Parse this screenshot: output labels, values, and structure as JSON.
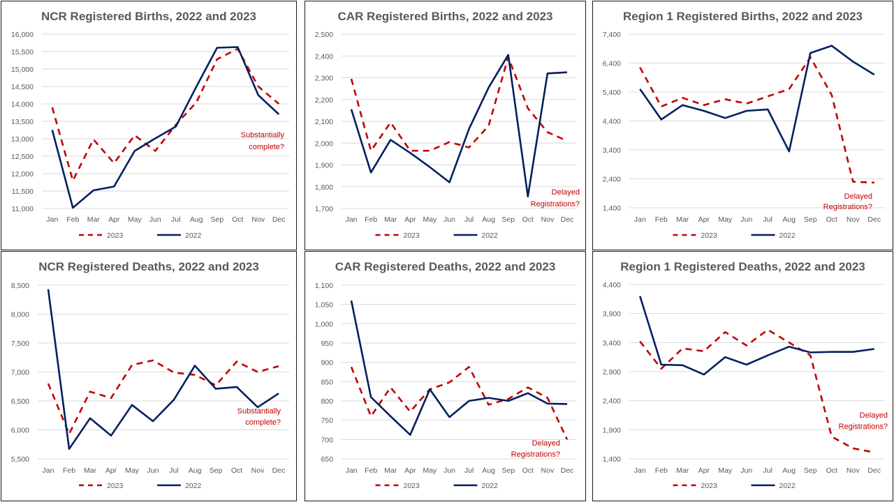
{
  "colors": {
    "s2023": "#c00000",
    "s2022": "#002060"
  },
  "chart_data": [
    {
      "type": "line",
      "title": "NCR Registered Births, 2022 and 2023",
      "categories": [
        "Jan",
        "Feb",
        "Mar",
        "Apr",
        "May",
        "Jun",
        "Jul",
        "Aug",
        "Sep",
        "Oct",
        "Nov",
        "Dec"
      ],
      "ylim": [
        11000,
        16000
      ],
      "yticks": [
        11000,
        11500,
        12000,
        12500,
        13000,
        13500,
        14000,
        14500,
        15000,
        15500,
        16000
      ],
      "ytick_labels": [
        "11,000",
        "11,500",
        "12,000",
        "12,500",
        "13,000",
        "13,500",
        "14,000",
        "14,500",
        "15,000",
        "15,500",
        "16,000"
      ],
      "series": [
        {
          "name": "2023",
          "values": [
            13900,
            11800,
            12980,
            12300,
            13100,
            12650,
            13400,
            14050,
            15280,
            15580,
            14500,
            14000
          ]
        },
        {
          "name": "2022",
          "values": [
            13250,
            11020,
            11520,
            11630,
            12650,
            13010,
            13350,
            14500,
            15610,
            15630,
            14250,
            13700
          ]
        }
      ],
      "legend": [
        "2023",
        "2022"
      ],
      "annotation": [
        "Substantially",
        "complete?"
      ],
      "grid": true,
      "legend_position": "bottom"
    },
    {
      "type": "line",
      "title": "CAR Registered Births, 2022 and 2023",
      "categories": [
        "Jan",
        "Feb",
        "Mar",
        "Apr",
        "May",
        "Jun",
        "Jul",
        "Aug",
        "Sep",
        "Oct",
        "Nov",
        "Dec"
      ],
      "ylim": [
        1700,
        2500
      ],
      "yticks": [
        1700,
        1800,
        1900,
        2000,
        2100,
        2200,
        2300,
        2400,
        2500
      ],
      "ytick_labels": [
        "1,700",
        "1,800",
        "1,900",
        "2,000",
        "2,100",
        "2,200",
        "2,300",
        "2,400",
        "2,500"
      ],
      "series": [
        {
          "name": "2023",
          "values": [
            2295,
            1965,
            2095,
            1965,
            1965,
            2005,
            1980,
            2080,
            2395,
            2160,
            2050,
            2010
          ]
        },
        {
          "name": "2022",
          "values": [
            2155,
            1865,
            2015,
            1955,
            1890,
            1820,
            2065,
            2255,
            2405,
            1755,
            2320,
            2325
          ]
        }
      ],
      "legend": [
        "2023",
        "2022"
      ],
      "annotation": [
        "Delayed",
        "Registrations?"
      ],
      "grid": true,
      "legend_position": "bottom"
    },
    {
      "type": "line",
      "title": "Region 1  Registered Births, 2022 and 2023",
      "categories": [
        "Jan",
        "Feb",
        "Mar",
        "Apr",
        "May",
        "Jun",
        "Jul",
        "Aug",
        "Sep",
        "Oct",
        "Nov",
        "Dec"
      ],
      "ylim": [
        1400,
        7400
      ],
      "yticks": [
        1400,
        2400,
        3400,
        4400,
        5400,
        6400,
        7400
      ],
      "ytick_labels": [
        "1,400",
        "2,400",
        "3,400",
        "4,400",
        "5,400",
        "6,400",
        "7,400"
      ],
      "series": [
        {
          "name": "2023",
          "values": [
            6250,
            4900,
            5200,
            4950,
            5150,
            5000,
            5250,
            5500,
            6600,
            5300,
            2300,
            2270
          ]
        },
        {
          "name": "2022",
          "values": [
            5500,
            4450,
            4950,
            4750,
            4500,
            4750,
            4800,
            3350,
            6750,
            7000,
            6450,
            6000
          ]
        }
      ],
      "legend": [
        "2023",
        "2022"
      ],
      "annotation": [
        "Delayed",
        "Registrations?"
      ],
      "grid": true,
      "legend_position": "bottom"
    },
    {
      "type": "line",
      "title": "NCR Registered Deaths, 2022 and 2023",
      "categories": [
        "Jan",
        "Feb",
        "Mar",
        "Apr",
        "May",
        "Jun",
        "Jul",
        "Aug",
        "Sep",
        "Oct",
        "Nov",
        "Dec"
      ],
      "ylim": [
        5500,
        8500
      ],
      "yticks": [
        5500,
        6000,
        6500,
        7000,
        7500,
        8000,
        8500
      ],
      "ytick_labels": [
        "5,500",
        "6,000",
        "6,500",
        "7,000",
        "7,500",
        "8,000",
        "8,500"
      ],
      "series": [
        {
          "name": "2023",
          "values": [
            6800,
            5930,
            6660,
            6550,
            7120,
            7200,
            6990,
            6950,
            6770,
            7180,
            7000,
            7100
          ]
        },
        {
          "name": "2022",
          "values": [
            8430,
            5670,
            6200,
            5900,
            6430,
            6150,
            6520,
            7110,
            6710,
            6740,
            6390,
            6630
          ]
        }
      ],
      "legend": [
        "2023",
        "2022"
      ],
      "annotation": [
        "Substantially",
        "complete?"
      ],
      "grid": true,
      "legend_position": "bottom"
    },
    {
      "type": "line",
      "title": "CAR Registered Deaths, 2022 and 2023",
      "categories": [
        "Jan",
        "Feb",
        "Mar",
        "Apr",
        "May",
        "Jun",
        "Jul",
        "Aug",
        "Sep",
        "Oct",
        "Nov",
        "Dec"
      ],
      "ylim": [
        650,
        1100
      ],
      "yticks": [
        650,
        700,
        750,
        800,
        850,
        900,
        950,
        1000,
        1050,
        1100
      ],
      "ytick_labels": [
        "650",
        "700",
        "750",
        "800",
        "850",
        "900",
        "950",
        "1,000",
        "1,050",
        "1,100"
      ],
      "series": [
        {
          "name": "2023",
          "values": [
            888,
            760,
            835,
            772,
            830,
            848,
            888,
            790,
            805,
            835,
            808,
            700
          ]
        },
        {
          "name": "2022",
          "values": [
            1060,
            810,
            760,
            712,
            830,
            758,
            800,
            808,
            800,
            820,
            793,
            792
          ]
        }
      ],
      "legend": [
        "2023",
        "2022"
      ],
      "annotation": [
        "Delayed",
        "Registrations?"
      ],
      "grid": true,
      "legend_position": "bottom"
    },
    {
      "type": "line",
      "title": "Region 1  Registered Deaths, 2022 and  2023",
      "categories": [
        "Jan",
        "Feb",
        "Mar",
        "Apr",
        "May",
        "Jun",
        "Jul",
        "Aug",
        "Sep",
        "Oct",
        "Nov",
        "Dec"
      ],
      "ylim": [
        1400,
        4400
      ],
      "yticks": [
        1400,
        1900,
        2400,
        2900,
        3400,
        3900,
        4400
      ],
      "ytick_labels": [
        "1,400",
        "1,900",
        "2,400",
        "2,900",
        "3,400",
        "3,900",
        "4,400"
      ],
      "series": [
        {
          "name": "2023",
          "values": [
            3420,
            2950,
            3300,
            3250,
            3580,
            3350,
            3620,
            3400,
            3180,
            1780,
            1580,
            1510
          ]
        },
        {
          "name": "2022",
          "values": [
            4200,
            3020,
            3010,
            2850,
            3150,
            3020,
            3180,
            3330,
            3230,
            3240,
            3240,
            3290
          ]
        }
      ],
      "legend": [
        "2023",
        "2022"
      ],
      "annotation": [
        "Delayed",
        "Registrations?"
      ],
      "grid": true,
      "legend_position": "bottom"
    }
  ]
}
